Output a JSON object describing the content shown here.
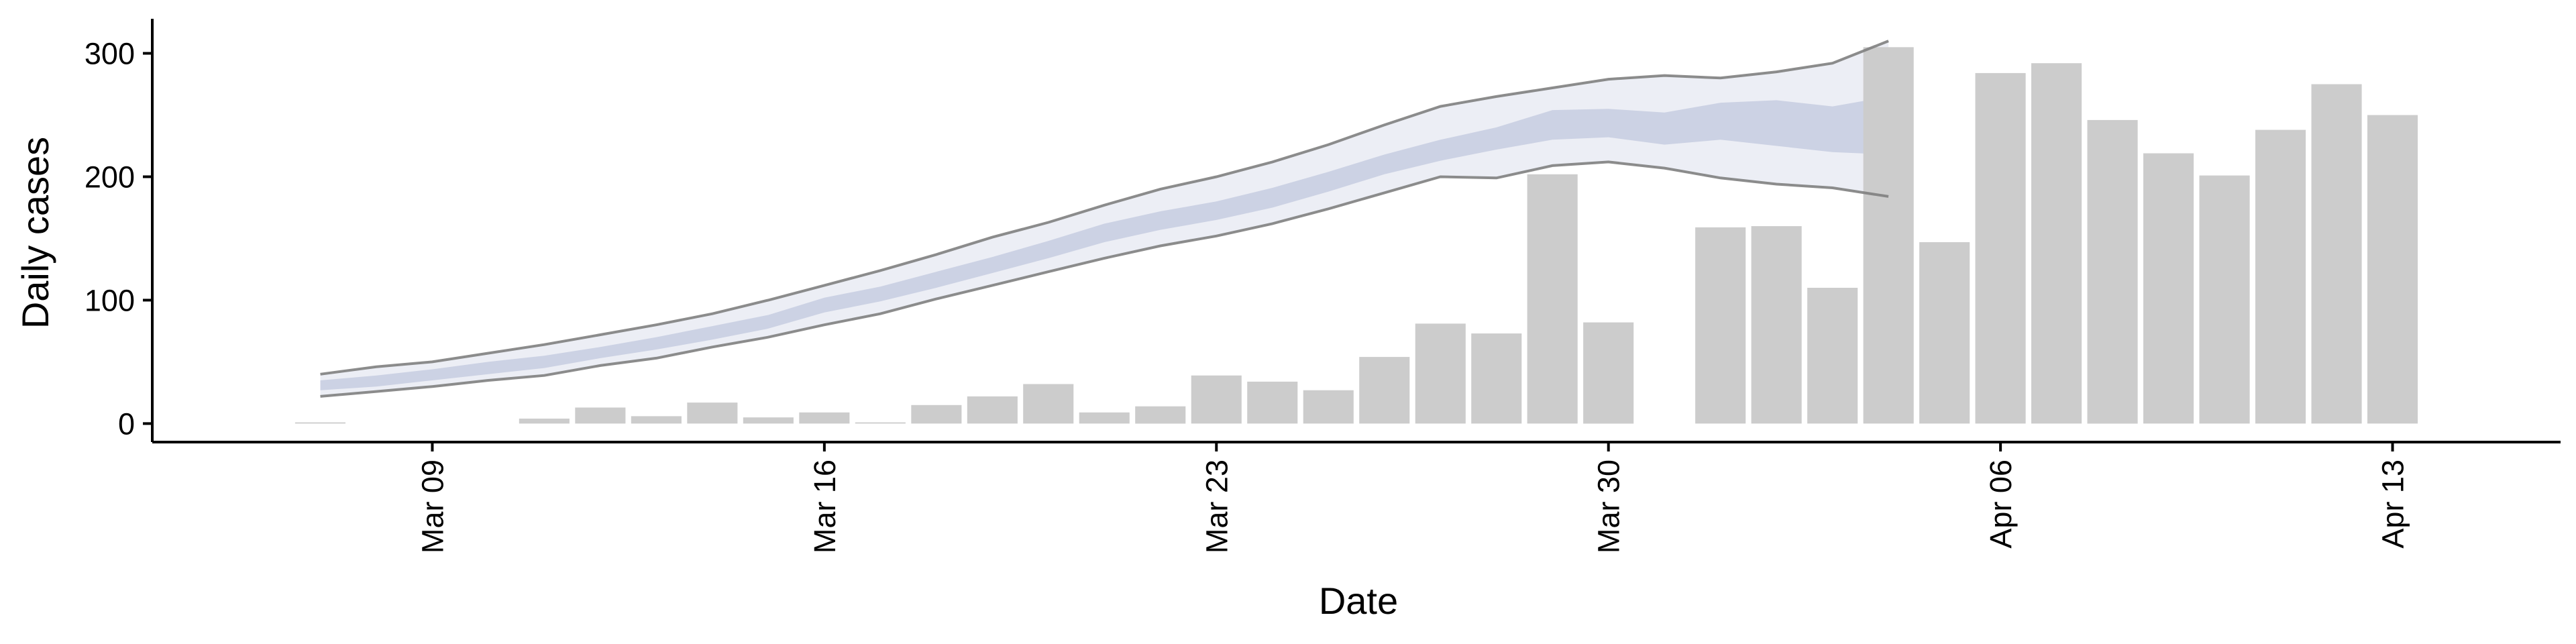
{
  "chart_data": {
    "type": "bar",
    "xlabel": "Date",
    "ylabel": "Daily cases",
    "ylim": [
      -15,
      328
    ],
    "yticks": [
      0,
      100,
      200,
      300
    ],
    "xticks": [
      {
        "date": "2020-03-09",
        "label": "Mar 09"
      },
      {
        "date": "2020-03-16",
        "label": "Mar 16"
      },
      {
        "date": "2020-03-23",
        "label": "Mar 23"
      },
      {
        "date": "2020-03-30",
        "label": "Mar 30"
      },
      {
        "date": "2020-04-06",
        "label": "Apr 06"
      },
      {
        "date": "2020-04-13",
        "label": "Apr 13"
      }
    ],
    "xlim": [
      "2020-03-04",
      "2020-04-16"
    ],
    "grid": false,
    "colors": {
      "bars": "#cccccc",
      "ribbon_outer": "#e9ebf3",
      "ribbon_inner": "#c7cde0",
      "bound_lines": "#7f7f7f",
      "axes": "#000000"
    },
    "cases": [
      {
        "date": "2020-03-07",
        "value": 1
      },
      {
        "date": "2020-03-11",
        "value": 4
      },
      {
        "date": "2020-03-12",
        "value": 13
      },
      {
        "date": "2020-03-13",
        "value": 6
      },
      {
        "date": "2020-03-14",
        "value": 17
      },
      {
        "date": "2020-03-15",
        "value": 5
      },
      {
        "date": "2020-03-16",
        "value": 9
      },
      {
        "date": "2020-03-17",
        "value": 1
      },
      {
        "date": "2020-03-18",
        "value": 15
      },
      {
        "date": "2020-03-19",
        "value": 22
      },
      {
        "date": "2020-03-20",
        "value": 32
      },
      {
        "date": "2020-03-21",
        "value": 9
      },
      {
        "date": "2020-03-22",
        "value": 14
      },
      {
        "date": "2020-03-23",
        "value": 39
      },
      {
        "date": "2020-03-24",
        "value": 34
      },
      {
        "date": "2020-03-25",
        "value": 27
      },
      {
        "date": "2020-03-26",
        "value": 54
      },
      {
        "date": "2020-03-27",
        "value": 81
      },
      {
        "date": "2020-03-28",
        "value": 73
      },
      {
        "date": "2020-03-29",
        "value": 202
      },
      {
        "date": "2020-03-30",
        "value": 82
      },
      {
        "date": "2020-04-01",
        "value": 159
      },
      {
        "date": "2020-04-02",
        "value": 160
      },
      {
        "date": "2020-04-03",
        "value": 110
      },
      {
        "date": "2020-04-04",
        "value": 305
      },
      {
        "date": "2020-04-05",
        "value": 147
      },
      {
        "date": "2020-04-06",
        "value": 284
      },
      {
        "date": "2020-04-07",
        "value": 292
      },
      {
        "date": "2020-04-08",
        "value": 246
      },
      {
        "date": "2020-04-09",
        "value": 219
      },
      {
        "date": "2020-04-10",
        "value": 201
      },
      {
        "date": "2020-04-11",
        "value": 238
      },
      {
        "date": "2020-04-12",
        "value": 275
      },
      {
        "date": "2020-04-13",
        "value": 250
      }
    ],
    "estimate_band": [
      {
        "date": "2020-03-07",
        "lower": 22,
        "inner_lower": 27,
        "inner_upper": 35,
        "upper": 40
      },
      {
        "date": "2020-03-08",
        "lower": 26,
        "inner_lower": 30,
        "inner_upper": 39,
        "upper": 46
      },
      {
        "date": "2020-03-09",
        "lower": 30,
        "inner_lower": 35,
        "inner_upper": 44,
        "upper": 50
      },
      {
        "date": "2020-03-10",
        "lower": 35,
        "inner_lower": 40,
        "inner_upper": 50,
        "upper": 57
      },
      {
        "date": "2020-03-11",
        "lower": 39,
        "inner_lower": 45,
        "inner_upper": 55,
        "upper": 64
      },
      {
        "date": "2020-03-12",
        "lower": 47,
        "inner_lower": 53,
        "inner_upper": 62,
        "upper": 72
      },
      {
        "date": "2020-03-13",
        "lower": 53,
        "inner_lower": 60,
        "inner_upper": 70,
        "upper": 80
      },
      {
        "date": "2020-03-14",
        "lower": 62,
        "inner_lower": 68,
        "inner_upper": 79,
        "upper": 89
      },
      {
        "date": "2020-03-15",
        "lower": 70,
        "inner_lower": 77,
        "inner_upper": 88,
        "upper": 100
      },
      {
        "date": "2020-03-16",
        "lower": 80,
        "inner_lower": 90,
        "inner_upper": 102,
        "upper": 112
      },
      {
        "date": "2020-03-17",
        "lower": 89,
        "inner_lower": 99,
        "inner_upper": 111,
        "upper": 124
      },
      {
        "date": "2020-03-18",
        "lower": 101,
        "inner_lower": 110,
        "inner_upper": 123,
        "upper": 137
      },
      {
        "date": "2020-03-19",
        "lower": 112,
        "inner_lower": 122,
        "inner_upper": 135,
        "upper": 151
      },
      {
        "date": "2020-03-20",
        "lower": 123,
        "inner_lower": 134,
        "inner_upper": 148,
        "upper": 163
      },
      {
        "date": "2020-03-21",
        "lower": 134,
        "inner_lower": 147,
        "inner_upper": 162,
        "upper": 177
      },
      {
        "date": "2020-03-22",
        "lower": 144,
        "inner_lower": 157,
        "inner_upper": 172,
        "upper": 190
      },
      {
        "date": "2020-03-23",
        "lower": 152,
        "inner_lower": 165,
        "inner_upper": 180,
        "upper": 200
      },
      {
        "date": "2020-03-24",
        "lower": 162,
        "inner_lower": 175,
        "inner_upper": 191,
        "upper": 212
      },
      {
        "date": "2020-03-25",
        "lower": 174,
        "inner_lower": 188,
        "inner_upper": 204,
        "upper": 226
      },
      {
        "date": "2020-03-26",
        "lower": 187,
        "inner_lower": 202,
        "inner_upper": 218,
        "upper": 242
      },
      {
        "date": "2020-03-27",
        "lower": 200,
        "inner_lower": 213,
        "inner_upper": 230,
        "upper": 257
      },
      {
        "date": "2020-03-28",
        "lower": 199,
        "inner_lower": 222,
        "inner_upper": 240,
        "upper": 265
      },
      {
        "date": "2020-03-29",
        "lower": 209,
        "inner_lower": 230,
        "inner_upper": 254,
        "upper": 272
      },
      {
        "date": "2020-03-30",
        "lower": 212,
        "inner_lower": 232,
        "inner_upper": 255,
        "upper": 279
      },
      {
        "date": "2020-03-31",
        "lower": 207,
        "inner_lower": 226,
        "inner_upper": 252,
        "upper": 282
      },
      {
        "date": "2020-04-01",
        "lower": 199,
        "inner_lower": 230,
        "inner_upper": 260,
        "upper": 280
      },
      {
        "date": "2020-04-02",
        "lower": 194,
        "inner_lower": 225,
        "inner_upper": 262,
        "upper": 285
      },
      {
        "date": "2020-04-03",
        "lower": 191,
        "inner_lower": 220,
        "inner_upper": 257,
        "upper": 292
      },
      {
        "date": "2020-04-04",
        "lower": 184,
        "inner_lower": 218,
        "inner_upper": 265,
        "upper": 310
      }
    ]
  }
}
